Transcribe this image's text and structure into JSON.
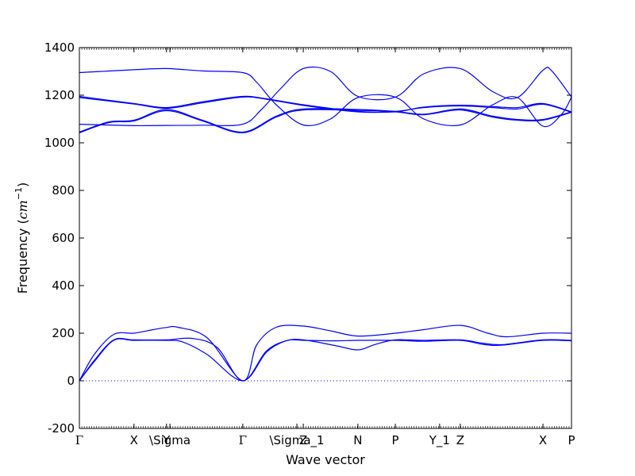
{
  "chart_data": {
    "type": "line",
    "title": "",
    "xlabel": "Wave vector",
    "ylabel_text": "Frequency (",
    "ylabel_unit": "cm",
    "ylabel_exp": "−1",
    "ylabel_close": ")",
    "ylim": [
      -200,
      1400
    ],
    "yticks": [
      -200,
      0,
      200,
      400,
      600,
      800,
      1000,
      1200,
      1400
    ],
    "xlim": [
      0,
      1
    ],
    "kpoints": [
      {
        "label": "Γ",
        "x": 0.0,
        "serif": true
      },
      {
        "label": "X",
        "x": 0.111
      },
      {
        "label": "Y",
        "x": 0.177
      },
      {
        "label": "\\Sigma",
        "x": 0.184
      },
      {
        "label": "Γ",
        "x": 0.332,
        "serif": true
      },
      {
        "label": "\\Sigma_1",
        "x": 0.442
      },
      {
        "label": "Z",
        "x": 0.455
      },
      {
        "label": "N",
        "x": 0.566
      },
      {
        "label": "P",
        "x": 0.642
      },
      {
        "label": "Y_1",
        "x": 0.732
      },
      {
        "label": "Z",
        "x": 0.774
      },
      {
        "label": "X",
        "x": 0.942
      },
      {
        "label": "P",
        "x": 1.0
      }
    ],
    "zero_line": {
      "y": 0,
      "style": "dotted",
      "color": "#0000ff"
    },
    "line_color": "#0000ff",
    "series": [
      {
        "points": [
          [
            0,
            0
          ],
          [
            0.03,
            80
          ],
          [
            0.07,
            170
          ],
          [
            0.111,
            170
          ],
          [
            0.177,
            170
          ],
          [
            0.21,
            163
          ],
          [
            0.26,
            110
          ],
          [
            0.332,
            0
          ],
          [
            0.38,
            120
          ],
          [
            0.42,
            168
          ],
          [
            0.455,
            170
          ],
          [
            0.52,
            168
          ],
          [
            0.566,
            170
          ],
          [
            0.642,
            170
          ],
          [
            0.7,
            166
          ],
          [
            0.774,
            170
          ],
          [
            0.82,
            153
          ],
          [
            0.86,
            150
          ],
          [
            0.942,
            170
          ],
          [
            1.0,
            168
          ]
        ]
      },
      {
        "points": [
          [
            0,
            0
          ],
          [
            0.03,
            85
          ],
          [
            0.07,
            172
          ],
          [
            0.111,
            172
          ],
          [
            0.177,
            172
          ],
          [
            0.23,
            178
          ],
          [
            0.28,
            140
          ],
          [
            0.332,
            0
          ],
          [
            0.38,
            125
          ],
          [
            0.42,
            168
          ],
          [
            0.455,
            172
          ],
          [
            0.52,
            148
          ],
          [
            0.566,
            130
          ],
          [
            0.6,
            152
          ],
          [
            0.642,
            172
          ],
          [
            0.7,
            170
          ],
          [
            0.774,
            172
          ],
          [
            0.82,
            158
          ],
          [
            0.86,
            152
          ],
          [
            0.942,
            172
          ],
          [
            1.0,
            170
          ]
        ]
      },
      {
        "points": [
          [
            0,
            0
          ],
          [
            0.03,
            110
          ],
          [
            0.07,
            195
          ],
          [
            0.111,
            200
          ],
          [
            0.15,
            215
          ],
          [
            0.177,
            224
          ],
          [
            0.2,
            225
          ],
          [
            0.26,
            180
          ],
          [
            0.332,
            0
          ],
          [
            0.36,
            150
          ],
          [
            0.4,
            225
          ],
          [
            0.455,
            230
          ],
          [
            0.51,
            210
          ],
          [
            0.566,
            188
          ],
          [
            0.642,
            200
          ],
          [
            0.7,
            215
          ],
          [
            0.774,
            233
          ],
          [
            0.83,
            200
          ],
          [
            0.87,
            185
          ],
          [
            0.942,
            200
          ],
          [
            1.0,
            200
          ]
        ]
      },
      {
        "points": [
          [
            0,
            1078
          ],
          [
            0.111,
            1072
          ],
          [
            0.177,
            1073
          ],
          [
            0.25,
            1074
          ],
          [
            0.332,
            1078
          ],
          [
            0.37,
            1140
          ],
          [
            0.41,
            1230
          ],
          [
            0.455,
            1312
          ],
          [
            0.51,
            1300
          ],
          [
            0.566,
            1195
          ],
          [
            0.642,
            1192
          ],
          [
            0.7,
            1290
          ],
          [
            0.774,
            1312
          ],
          [
            0.84,
            1215
          ],
          [
            0.89,
            1190
          ],
          [
            0.942,
            1305
          ],
          [
            0.96,
            1302
          ],
          [
            1.0,
            1192
          ]
        ]
      },
      {
        "points": [
          [
            0,
            1295
          ],
          [
            0.111,
            1307
          ],
          [
            0.177,
            1312
          ],
          [
            0.25,
            1302
          ],
          [
            0.332,
            1295
          ],
          [
            0.36,
            1255
          ],
          [
            0.4,
            1160
          ],
          [
            0.455,
            1075
          ],
          [
            0.51,
            1100
          ],
          [
            0.566,
            1190
          ],
          [
            0.642,
            1192
          ],
          [
            0.7,
            1100
          ],
          [
            0.774,
            1075
          ],
          [
            0.84,
            1160
          ],
          [
            0.89,
            1190
          ],
          [
            0.942,
            1070
          ],
          [
            0.98,
            1120
          ],
          [
            1.0,
            1192
          ]
        ]
      },
      {
        "points": [
          [
            0,
            1195
          ],
          [
            0.111,
            1165
          ],
          [
            0.177,
            1148
          ],
          [
            0.25,
            1172
          ],
          [
            0.332,
            1195
          ],
          [
            0.38,
            1185
          ],
          [
            0.455,
            1160
          ],
          [
            0.566,
            1132
          ],
          [
            0.642,
            1130
          ],
          [
            0.7,
            1150
          ],
          [
            0.774,
            1158
          ],
          [
            0.84,
            1152
          ],
          [
            0.89,
            1148
          ],
          [
            0.942,
            1165
          ],
          [
            1.0,
            1130
          ]
        ]
      },
      {
        "points": [
          [
            0,
            1190
          ],
          [
            0.111,
            1163
          ],
          [
            0.177,
            1145
          ],
          [
            0.25,
            1168
          ],
          [
            0.332,
            1192
          ],
          [
            0.38,
            1183
          ],
          [
            0.455,
            1157
          ],
          [
            0.566,
            1130
          ],
          [
            0.642,
            1132
          ],
          [
            0.7,
            1148
          ],
          [
            0.774,
            1155
          ],
          [
            0.84,
            1148
          ],
          [
            0.89,
            1142
          ],
          [
            0.942,
            1162
          ],
          [
            1.0,
            1128
          ]
        ]
      },
      {
        "points": [
          [
            0,
            1045
          ],
          [
            0.06,
            1088
          ],
          [
            0.111,
            1095
          ],
          [
            0.177,
            1140
          ],
          [
            0.25,
            1095
          ],
          [
            0.332,
            1045
          ],
          [
            0.4,
            1112
          ],
          [
            0.455,
            1142
          ],
          [
            0.566,
            1140
          ],
          [
            0.642,
            1132
          ],
          [
            0.7,
            1120
          ],
          [
            0.774,
            1142
          ],
          [
            0.84,
            1112
          ],
          [
            0.89,
            1098
          ],
          [
            0.942,
            1098
          ],
          [
            1.0,
            1130
          ]
        ]
      },
      {
        "points": [
          [
            0,
            1042
          ],
          [
            0.06,
            1085
          ],
          [
            0.111,
            1092
          ],
          [
            0.177,
            1135
          ],
          [
            0.25,
            1092
          ],
          [
            0.332,
            1042
          ],
          [
            0.4,
            1108
          ],
          [
            0.455,
            1138
          ],
          [
            0.566,
            1136
          ],
          [
            0.642,
            1130
          ],
          [
            0.7,
            1118
          ],
          [
            0.774,
            1138
          ],
          [
            0.84,
            1108
          ],
          [
            0.89,
            1095
          ],
          [
            0.942,
            1095
          ],
          [
            1.0,
            1128
          ]
        ]
      }
    ]
  }
}
